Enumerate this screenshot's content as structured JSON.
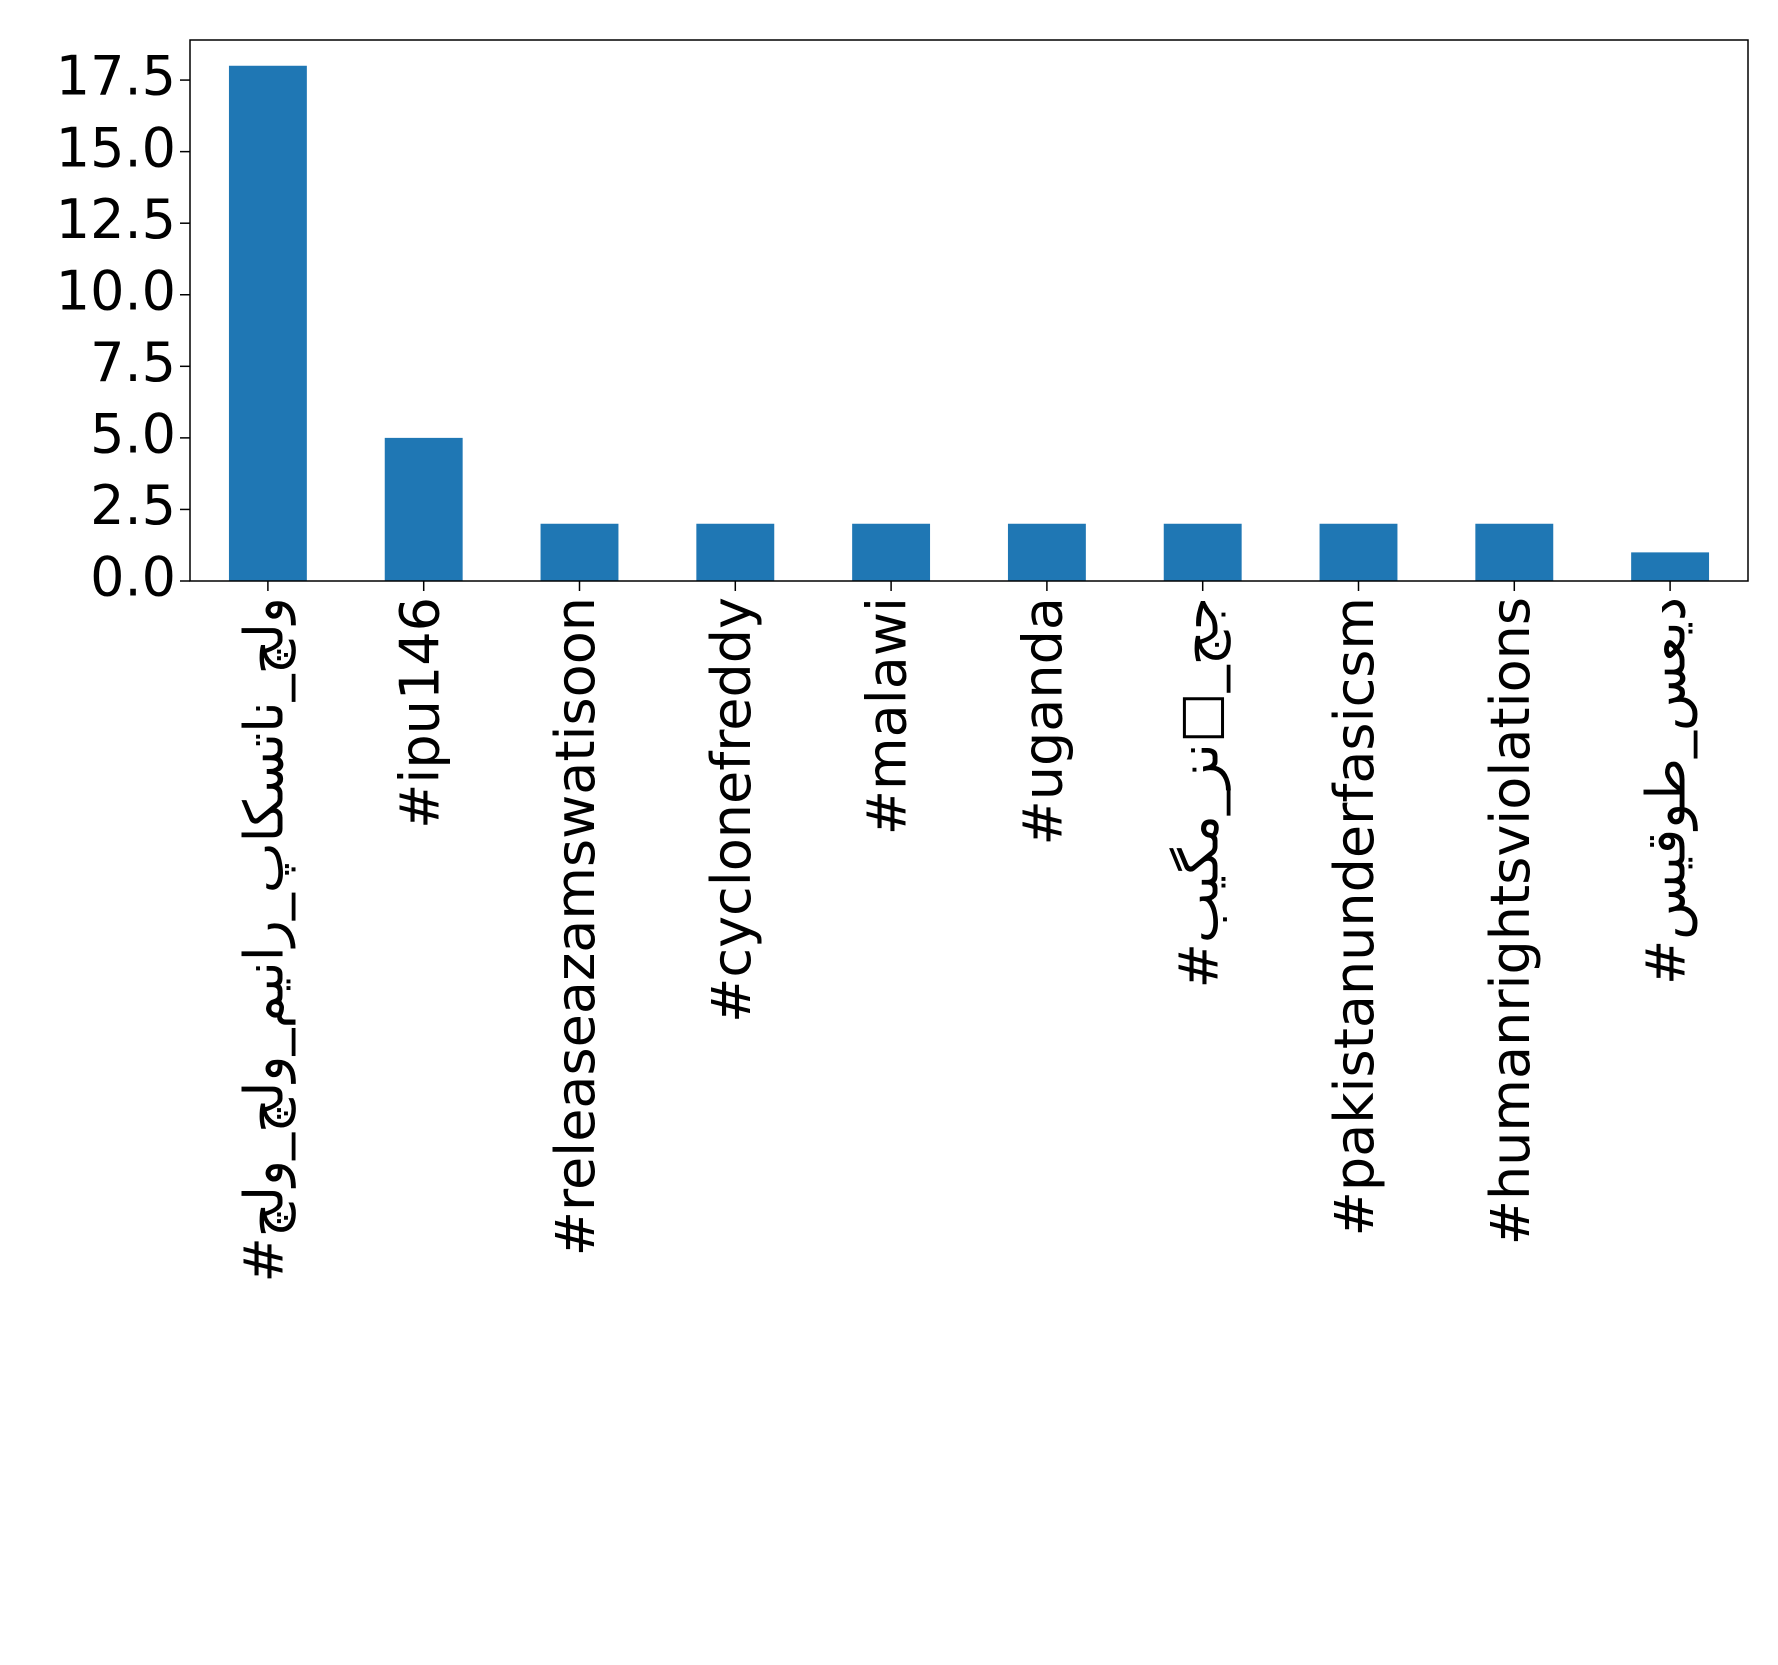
{
  "chart_data": {
    "type": "bar",
    "categories": [
      "#چلو_چلو_مینار_پاکستان_چلو",
      "#ipu146",
      "#releaseazamswatisoon",
      "#cyclonefreddy",
      "#malawi",
      "#uganda",
      "#بیگم_زن□_جج",
      "#pakistanunderfasicsm",
      "#humanrightsviolations",
      "#سيقوط_سعيد"
    ],
    "values": [
      18,
      5,
      2,
      2,
      2,
      2,
      2,
      2,
      2,
      1
    ],
    "color": "#1f77b4",
    "ylim": [
      0,
      18.9
    ],
    "yticks": [
      {
        "value": 0,
        "label": "0.0"
      },
      2.5,
      {
        "value": 5,
        "label": "5.0"
      },
      7.5,
      {
        "value": 10,
        "label": "10.0"
      },
      12.5,
      {
        "value": 15,
        "label": "15.0"
      },
      17.5
    ],
    "grid": false
  }
}
